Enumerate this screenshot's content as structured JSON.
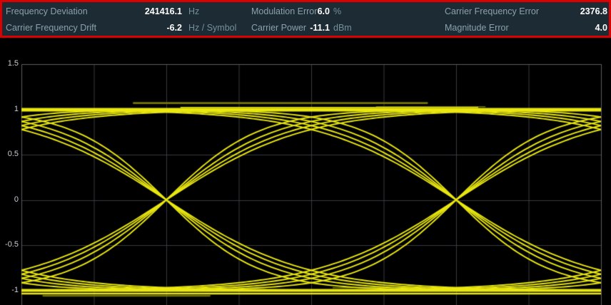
{
  "header": {
    "highlight_color": "#dd0000",
    "bg": "#1d2b34",
    "rows": [
      {
        "cells": [
          {
            "label": "Frequency Deviation",
            "value": "241416.1",
            "unit": "Hz"
          },
          {
            "label": "Modulation Error",
            "value": "6.0",
            "unit": "%"
          },
          {
            "label": "Carrier Frequency Error",
            "value": "2376.8",
            "unit": ""
          }
        ]
      },
      {
        "cells": [
          {
            "label": "Carrier Frequency Drift",
            "value": "-6.2",
            "unit": "Hz / Symbol"
          },
          {
            "label": "Carrier Power",
            "value": "-11.1",
            "unit": "dBm"
          },
          {
            "label": "Magnitude Error",
            "value": "4.0",
            "unit": ""
          }
        ]
      }
    ]
  },
  "chart_data": {
    "type": "line",
    "subtype": "eye-diagram",
    "title": "",
    "xlabel": "",
    "ylabel": "",
    "xlim": [
      0,
      8
    ],
    "x_gridline_step": 1,
    "ylim_visible": [
      -1.16,
      1.5
    ],
    "y_ticks": [
      "1.5",
      "1",
      "0.5",
      "0",
      "-0.5",
      "-1"
    ],
    "grid": true,
    "levels": [
      1,
      -1
    ],
    "eye_crossings_x": [
      2,
      6
    ],
    "offscreen_crossings_x": [
      -2,
      10
    ],
    "transition_steepness_variants": [
      0.52,
      0.58,
      0.66,
      0.78
    ],
    "plateau_strands": [
      {
        "y": 1.0,
        "lw": 4.2,
        "t0": 0,
        "t1": 8
      },
      {
        "y": 0.985,
        "lw": 2.0,
        "t0": 0,
        "t1": 8
      },
      {
        "y": 1.022,
        "lw": 1.5,
        "t0": 2.2,
        "t1": 6.3
      },
      {
        "y": -1.0,
        "lw": 4.0,
        "t0": 0,
        "t1": 8
      },
      {
        "y": -1.035,
        "lw": 2.5,
        "t0": 0,
        "t1": 8
      }
    ],
    "accent_strands": [
      {
        "y": 1.07,
        "lw": 2.6,
        "t0": 1.55,
        "t1": 5.6
      },
      {
        "y": 1.03,
        "lw": 1.6,
        "t0": 4.9,
        "t1": 6.4
      },
      {
        "y": -1.06,
        "lw": 2.2,
        "t0": 0.3,
        "t1": 2.6
      },
      {
        "y": -0.97,
        "lw": 1.4,
        "t0": 4.3,
        "t1": 6.0
      }
    ],
    "trace_color": "#eae810",
    "accent_color": "#74740a",
    "grid_color": "#3b3b41",
    "frame_color": "#5c5c62",
    "bg_color": "#000000",
    "tick_color": "#caced1"
  }
}
